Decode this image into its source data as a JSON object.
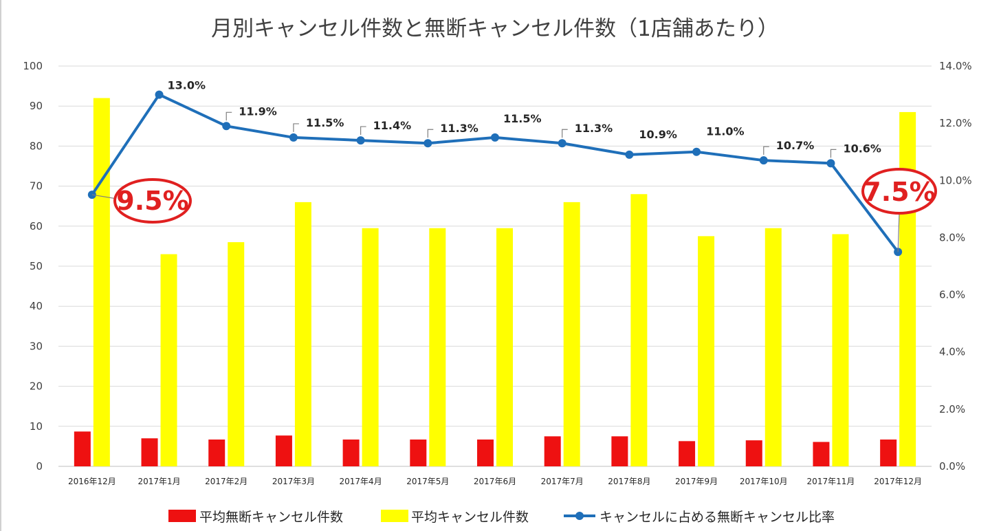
{
  "chart_data": {
    "type": "bar",
    "title": "月別キャンセル件数と無断キャンセル件数（1店舗あたり）",
    "categories": [
      "2016年12月",
      "2017年1月",
      "2017年2月",
      "2017年3月",
      "2017年4月",
      "2017年5月",
      "2017年6月",
      "2017年7月",
      "2017年8月",
      "2017年9月",
      "2017年10月",
      "2017年11月",
      "2017年12月"
    ],
    "series": [
      {
        "name": "平均無断キャンセル件数",
        "type": "bar",
        "axis": "left",
        "color": "#ee1111",
        "values": [
          8.7,
          7.0,
          6.7,
          7.7,
          6.7,
          6.7,
          6.7,
          7.5,
          7.5,
          6.3,
          6.5,
          6.1,
          6.7
        ]
      },
      {
        "name": "平均キャンセル件数",
        "type": "bar",
        "axis": "left",
        "color": "#ffff00",
        "values": [
          92,
          53,
          56,
          66,
          59.5,
          59.5,
          59.5,
          66,
          68,
          57.5,
          59.5,
          58,
          88.5
        ]
      },
      {
        "name": "キャンセルに占める無断キャンセル比率",
        "type": "line",
        "axis": "right",
        "color": "#1f6fb9",
        "values": [
          9.5,
          13.0,
          11.9,
          11.5,
          11.4,
          11.3,
          11.5,
          11.3,
          10.9,
          11.0,
          10.7,
          10.6,
          7.5
        ],
        "labels": [
          "9.5%",
          "13.0%",
          "11.9%",
          "11.5%",
          "11.4%",
          "11.3%",
          "11.5%",
          "11.3%",
          "10.9%",
          "11.0%",
          "10.7%",
          "10.6%",
          "7.5%"
        ]
      }
    ],
    "ylim_left": [
      0,
      100
    ],
    "yticks_left": [
      "0",
      "10",
      "20",
      "30",
      "40",
      "50",
      "60",
      "70",
      "80",
      "90",
      "100"
    ],
    "ylim_right": [
      0,
      14
    ],
    "yticks_right": [
      "0.0%",
      "2.0%",
      "4.0%",
      "6.0%",
      "8.0%",
      "10.0%",
      "12.0%",
      "14.0%"
    ],
    "grid": true,
    "legend_position": "bottom",
    "highlight_color": "#e02020"
  }
}
